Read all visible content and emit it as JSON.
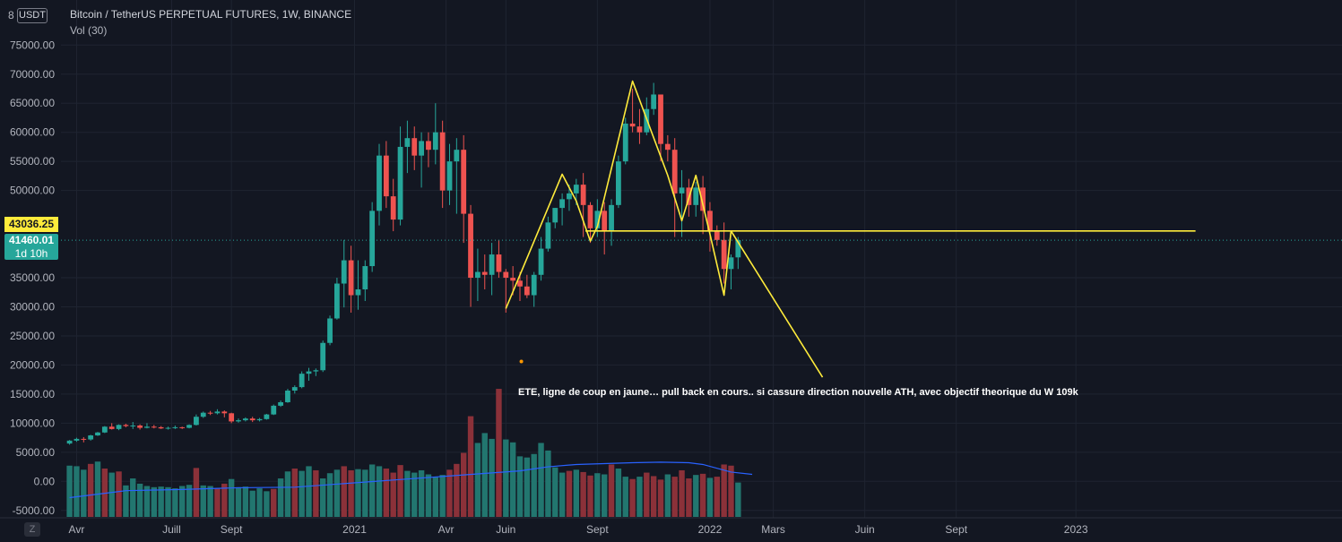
{
  "header": {
    "title": "Bitcoin / TetherUS PERPETUAL FUTURES, 1W, BINANCE",
    "indicator": "Vol (30)"
  },
  "corner": {
    "currency_badge": "USDT",
    "digit": "8"
  },
  "timezone_button": "Z",
  "price_tags": {
    "line_level": "43036.25",
    "last_price": "41460.01",
    "countdown": "1d 10h"
  },
  "annotation": "ETE, ligne de coup en jaune… pull back en cours.. si cassure direction nouvelle ATH, avec objectif theorique du W 109k",
  "colors": {
    "background": "#131722",
    "up": "#26a69a",
    "down": "#ef5350",
    "drawing": "#ffeb3b",
    "vol_ma": "#2962ff",
    "grid": "#1f2431",
    "axis_text": "#b2b5be"
  },
  "chart_data": {
    "type": "candlestick",
    "timeframe": "1W",
    "ylim": [
      -6500,
      78500
    ],
    "ytick_labels": [
      "75000.00",
      "70000.00",
      "65000.00",
      "60000.00",
      "55000.00",
      "50000.00",
      "35000.00",
      "30000.00",
      "25000.00",
      "20000.00",
      "15000.00",
      "10000.00",
      "5000.00",
      "0.00",
      "-5000.00"
    ],
    "xtick_labels": [
      "Avr",
      "Juill",
      "Sept",
      "2021",
      "Avr",
      "Juin",
      "Sept",
      "2022",
      "Mars",
      "Juin",
      "Sept",
      "2023"
    ],
    "xtick_weeks": [
      1,
      14.5,
      23,
      40.5,
      53.5,
      62,
      75,
      91,
      100,
      113,
      126,
      143
    ],
    "first_week": "2020-03-23",
    "candles": [
      [
        6500,
        7100,
        6300,
        7000
      ],
      [
        7000,
        7500,
        6800,
        7300
      ],
      [
        7300,
        7600,
        6700,
        7200
      ],
      [
        7200,
        8000,
        7000,
        7900
      ],
      [
        7900,
        8500,
        7800,
        8400
      ],
      [
        8400,
        9500,
        8300,
        9400
      ],
      [
        9400,
        10000,
        8900,
        9000
      ],
      [
        9000,
        9800,
        8800,
        9700
      ],
      [
        9700,
        9900,
        9300,
        9500
      ],
      [
        9500,
        10200,
        9000,
        9600
      ],
      [
        9600,
        9800,
        8900,
        9200
      ],
      [
        9200,
        10000,
        9100,
        9400
      ],
      [
        9400,
        9700,
        9100,
        9300
      ],
      [
        9300,
        9500,
        9000,
        9100
      ],
      [
        9100,
        9400,
        8900,
        9200
      ],
      [
        9200,
        9600,
        9000,
        9300
      ],
      [
        9300,
        9400,
        9000,
        9200
      ],
      [
        9200,
        9800,
        9100,
        9700
      ],
      [
        9700,
        11500,
        9600,
        11100
      ],
      [
        11100,
        12000,
        10900,
        11800
      ],
      [
        11800,
        12100,
        11400,
        11700
      ],
      [
        11700,
        12400,
        11500,
        12000
      ],
      [
        12000,
        12200,
        11000,
        11700
      ],
      [
        11700,
        11800,
        10000,
        10300
      ],
      [
        10300,
        10800,
        10100,
        10500
      ],
      [
        10500,
        11000,
        10300,
        10800
      ],
      [
        10800,
        11100,
        10200,
        10500
      ],
      [
        10500,
        10900,
        10300,
        10700
      ],
      [
        10700,
        11600,
        10600,
        11500
      ],
      [
        11500,
        13200,
        11400,
        13000
      ],
      [
        13000,
        13900,
        12800,
        13600
      ],
      [
        13600,
        15900,
        13500,
        15600
      ],
      [
        15600,
        16500,
        15100,
        16200
      ],
      [
        16200,
        18900,
        16000,
        18500
      ],
      [
        18500,
        19500,
        17300,
        18900
      ],
      [
        18900,
        19400,
        18100,
        19100
      ],
      [
        19100,
        24200,
        18800,
        23800
      ],
      [
        23800,
        28500,
        23400,
        28000
      ],
      [
        28000,
        35000,
        27800,
        34000
      ],
      [
        34000,
        41500,
        29900,
        38000
      ],
      [
        38000,
        40500,
        29000,
        32000
      ],
      [
        32000,
        38000,
        29500,
        33000
      ],
      [
        33000,
        38000,
        31000,
        37000
      ],
      [
        37000,
        48000,
        36000,
        46500
      ],
      [
        46500,
        58000,
        44000,
        56000
      ],
      [
        56000,
        58500,
        47000,
        49000
      ],
      [
        49000,
        52000,
        43000,
        45000
      ],
      [
        45000,
        61000,
        44000,
        57500
      ],
      [
        57500,
        62000,
        53000,
        59000
      ],
      [
        59000,
        61000,
        53500,
        56000
      ],
      [
        56000,
        60000,
        50500,
        58500
      ],
      [
        58500,
        60000,
        54000,
        57000
      ],
      [
        57000,
        65000,
        54500,
        60000
      ],
      [
        60000,
        62000,
        47000,
        50000
      ],
      [
        50000,
        58000,
        47500,
        55000
      ],
      [
        55000,
        59000,
        46000,
        57000
      ],
      [
        57000,
        59500,
        41000,
        46000
      ],
      [
        46000,
        47500,
        30000,
        35000
      ],
      [
        35000,
        40000,
        31000,
        36000
      ],
      [
        36000,
        39000,
        33000,
        35500
      ],
      [
        35500,
        41000,
        32000,
        39000
      ],
      [
        39000,
        41500,
        35000,
        36000
      ],
      [
        36000,
        36500,
        29000,
        35000
      ],
      [
        35000,
        37000,
        32000,
        34500
      ],
      [
        34500,
        36000,
        31000,
        33500
      ],
      [
        33500,
        35500,
        31500,
        32000
      ],
      [
        32000,
        36000,
        30000,
        35500
      ],
      [
        35500,
        42000,
        34500,
        40000
      ],
      [
        40000,
        45500,
        39500,
        44500
      ],
      [
        44500,
        47000,
        43500,
        47000
      ],
      [
        47000,
        49500,
        44000,
        48500
      ],
      [
        48500,
        51000,
        46500,
        49500
      ],
      [
        49500,
        52000,
        47500,
        51000
      ],
      [
        51000,
        53000,
        42000,
        47500
      ],
      [
        47500,
        48000,
        41000,
        43500
      ],
      [
        43500,
        48500,
        42000,
        46500
      ],
      [
        46500,
        48000,
        39000,
        43000
      ],
      [
        43000,
        48500,
        40500,
        47500
      ],
      [
        47500,
        56000,
        47000,
        55000
      ],
      [
        55000,
        62500,
        54500,
        61500
      ],
      [
        61500,
        67500,
        60000,
        61000
      ],
      [
        61000,
        64000,
        58000,
        60000
      ],
      [
        60000,
        66000,
        59500,
        64000
      ],
      [
        64000,
        68500,
        63000,
        66500
      ],
      [
        66500,
        66500,
        55000,
        58000
      ],
      [
        58000,
        59500,
        55000,
        57000
      ],
      [
        57000,
        59000,
        42000,
        49500
      ],
      [
        49500,
        53500,
        42000,
        50500
      ],
      [
        50500,
        52000,
        45500,
        47500
      ],
      [
        47500,
        51500,
        45500,
        50500
      ],
      [
        50500,
        52500,
        42500,
        46500
      ],
      [
        46500,
        48000,
        39500,
        43000
      ],
      [
        43000,
        44000,
        40500,
        41500
      ],
      [
        41500,
        44500,
        34000,
        36500
      ],
      [
        36500,
        39000,
        33000,
        38500
      ],
      [
        38500,
        42000,
        36500,
        41460
      ]
    ],
    "volume": [
      [
        2700,
        0
      ],
      [
        2600,
        0
      ],
      [
        2000,
        0
      ],
      [
        3000,
        1
      ],
      [
        3400,
        0
      ],
      [
        2200,
        1
      ],
      [
        1500,
        0
      ],
      [
        1700,
        1
      ],
      [
        -700,
        0
      ],
      [
        500,
        0
      ],
      [
        -400,
        0
      ],
      [
        -800,
        0
      ],
      [
        -1000,
        0
      ],
      [
        -900,
        0
      ],
      [
        -1000,
        0
      ],
      [
        -1200,
        0
      ],
      [
        -800,
        0
      ],
      [
        -600,
        0
      ],
      [
        2300,
        1
      ],
      [
        -700,
        0
      ],
      [
        -800,
        0
      ],
      [
        -1200,
        1
      ],
      [
        -400,
        1
      ],
      [
        400,
        0
      ],
      [
        -1000,
        0
      ],
      [
        -900,
        0
      ],
      [
        -1600,
        0
      ],
      [
        -1200,
        0
      ],
      [
        -1700,
        0
      ],
      [
        -1300,
        1
      ],
      [
        500,
        0
      ],
      [
        1700,
        0
      ],
      [
        2200,
        1
      ],
      [
        1800,
        0
      ],
      [
        2600,
        0
      ],
      [
        1900,
        1
      ],
      [
        500,
        0
      ],
      [
        1400,
        0
      ],
      [
        2000,
        0
      ],
      [
        2600,
        1
      ],
      [
        1900,
        1
      ],
      [
        2100,
        0
      ],
      [
        2000,
        0
      ],
      [
        2900,
        0
      ],
      [
        2600,
        0
      ],
      [
        2200,
        1
      ],
      [
        1500,
        1
      ],
      [
        2800,
        1
      ],
      [
        1800,
        0
      ],
      [
        1500,
        0
      ],
      [
        1900,
        0
      ],
      [
        1200,
        0
      ],
      [
        700,
        0
      ],
      [
        1100,
        0
      ],
      [
        2000,
        1
      ],
      [
        3000,
        1
      ],
      [
        4900,
        1
      ],
      [
        11200,
        1
      ],
      [
        6600,
        0
      ],
      [
        8300,
        0
      ],
      [
        7300,
        0
      ],
      [
        15900,
        1
      ],
      [
        7200,
        0
      ],
      [
        6700,
        0
      ],
      [
        4300,
        0
      ],
      [
        4100,
        0
      ],
      [
        4700,
        0
      ],
      [
        6600,
        0
      ],
      [
        5300,
        0
      ],
      [
        2400,
        0
      ],
      [
        1500,
        0
      ],
      [
        1800,
        1
      ],
      [
        2000,
        0
      ],
      [
        1600,
        1
      ],
      [
        1000,
        1
      ],
      [
        1400,
        0
      ],
      [
        1200,
        0
      ],
      [
        2900,
        1
      ],
      [
        2200,
        0
      ],
      [
        800,
        0
      ],
      [
        400,
        1
      ],
      [
        800,
        0
      ],
      [
        1500,
        1
      ],
      [
        900,
        1
      ],
      [
        300,
        1
      ],
      [
        1200,
        0
      ],
      [
        800,
        1
      ],
      [
        1900,
        1
      ],
      [
        500,
        1
      ],
      [
        1100,
        0
      ],
      [
        1300,
        1
      ],
      [
        600,
        0
      ],
      [
        800,
        1
      ],
      [
        2900,
        1
      ],
      [
        2700,
        1
      ],
      [
        -200,
        0
      ]
    ],
    "volume_ma": [
      [
        0,
        -2800
      ],
      [
        8,
        -1600
      ],
      [
        16,
        -1400
      ],
      [
        24,
        -1100
      ],
      [
        32,
        -1000
      ],
      [
        40,
        -300
      ],
      [
        48,
        400
      ],
      [
        56,
        1100
      ],
      [
        64,
        1800
      ],
      [
        68,
        2500
      ],
      [
        72,
        2900
      ],
      [
        80,
        3200
      ],
      [
        84,
        3300
      ],
      [
        88,
        3200
      ],
      [
        90,
        2900
      ],
      [
        94,
        1600
      ],
      [
        97,
        1200
      ]
    ],
    "drawings": {
      "polyline": [
        [
          62,
          29700
        ],
        [
          70,
          52800
        ],
        [
          72,
          48200
        ],
        [
          74,
          41300
        ],
        [
          75,
          43800
        ],
        [
          80,
          68800
        ],
        [
          85,
          52600
        ],
        [
          87,
          44800
        ],
        [
          89,
          52600
        ],
        [
          91,
          42500
        ],
        [
          93,
          32000
        ],
        [
          94,
          43036.25
        ],
        [
          107,
          17900
        ]
      ],
      "neckline": [
        [
          73.3,
          43036.25
        ],
        [
          160,
          43036.25
        ]
      ],
      "last_price_line": 41460.01
    },
    "marker": [
      64.2,
      20600
    ]
  }
}
